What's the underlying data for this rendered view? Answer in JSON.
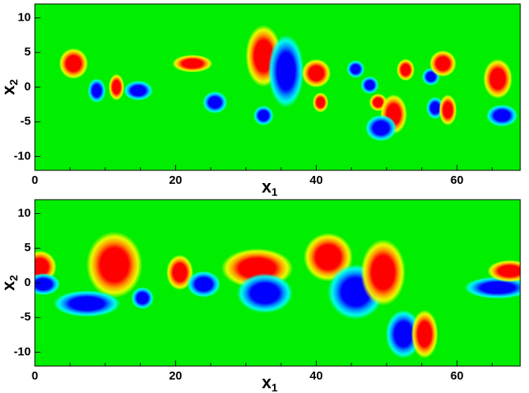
{
  "chart_data": [
    {
      "type": "contour",
      "background": "#00ee00",
      "positive_color": "#ff0000",
      "negative_color": "#0000ff",
      "xlabel": "x",
      "xlabel_sub": "1",
      "ylabel": "x",
      "ylabel_sub": "2",
      "xlim": [
        0,
        69
      ],
      "ylim": [
        -12,
        12
      ],
      "xticks": [
        0,
        20,
        40,
        60
      ],
      "yticks": [
        -10,
        -5,
        0,
        5,
        10
      ],
      "xminorticks": [
        5,
        10,
        15,
        25,
        30,
        35,
        45,
        50,
        55,
        65
      ],
      "vortices": [
        {
          "x": 5.5,
          "y": 3.4,
          "rx": 1.3,
          "ry": 1.4,
          "sign": 1
        },
        {
          "x": 8.8,
          "y": -0.5,
          "rx": 0.8,
          "ry": 1.1,
          "sign": -1
        },
        {
          "x": 11.6,
          "y": 0,
          "rx": 0.7,
          "ry": 1.2,
          "sign": 1
        },
        {
          "x": 14.7,
          "y": -0.5,
          "rx": 1.3,
          "ry": 0.9,
          "sign": -1
        },
        {
          "x": 22.4,
          "y": 3.4,
          "rx": 1.8,
          "ry": 0.8,
          "sign": 1
        },
        {
          "x": 25.6,
          "y": -2.2,
          "rx": 1.1,
          "ry": 1.0,
          "sign": -1
        },
        {
          "x": 32.5,
          "y": 4.5,
          "rx": 1.6,
          "ry": 2.8,
          "sign": 1
        },
        {
          "x": 35.7,
          "y": 2.3,
          "rx": 1.6,
          "ry": 3.3,
          "sign": -1
        },
        {
          "x": 32.5,
          "y": -4.1,
          "rx": 0.9,
          "ry": 0.9,
          "sign": -1
        },
        {
          "x": 40,
          "y": 2,
          "rx": 1.3,
          "ry": 1.3,
          "sign": 1
        },
        {
          "x": 40.6,
          "y": -2.2,
          "rx": 0.7,
          "ry": 0.9,
          "sign": 1
        },
        {
          "x": 45.6,
          "y": 2.6,
          "rx": 0.8,
          "ry": 0.8,
          "sign": -1
        },
        {
          "x": 47.6,
          "y": 0.3,
          "rx": 0.8,
          "ry": 0.8,
          "sign": -1
        },
        {
          "x": 48.8,
          "y": -2.2,
          "rx": 0.8,
          "ry": 0.8,
          "sign": 1
        },
        {
          "x": 51,
          "y": -3.9,
          "rx": 1.2,
          "ry": 1.8,
          "sign": 1
        },
        {
          "x": 49.2,
          "y": -5.9,
          "rx": 1.4,
          "ry": 1.2,
          "sign": -1
        },
        {
          "x": 52.7,
          "y": 2.5,
          "rx": 0.8,
          "ry": 1.0,
          "sign": 1
        },
        {
          "x": 56.3,
          "y": 1.5,
          "rx": 0.8,
          "ry": 0.8,
          "sign": -1
        },
        {
          "x": 58,
          "y": 3.4,
          "rx": 1.2,
          "ry": 1.2,
          "sign": 1
        },
        {
          "x": 56.9,
          "y": -3,
          "rx": 0.8,
          "ry": 1.0,
          "sign": -1
        },
        {
          "x": 58.7,
          "y": -3.3,
          "rx": 0.8,
          "ry": 1.4,
          "sign": 1
        },
        {
          "x": 65.8,
          "y": 1.2,
          "rx": 1.3,
          "ry": 1.8,
          "sign": 1
        },
        {
          "x": 66.4,
          "y": -4.1,
          "rx": 1.4,
          "ry": 1.0,
          "sign": -1
        }
      ]
    },
    {
      "type": "contour",
      "background": "#00ee00",
      "positive_color": "#ff0000",
      "negative_color": "#0000ff",
      "xlabel": "x",
      "xlabel_sub": "1",
      "ylabel": "x",
      "ylabel_sub": "2",
      "xlim": [
        0,
        69
      ],
      "ylim": [
        -12,
        12
      ],
      "xticks": [
        0,
        20,
        40,
        60
      ],
      "yticks": [
        -10,
        -5,
        0,
        5,
        10
      ],
      "xminorticks": [
        5,
        10,
        15,
        25,
        30,
        35,
        45,
        50,
        55,
        65
      ],
      "vortices": [
        {
          "x": 0.7,
          "y": 2.3,
          "rx": 1.5,
          "ry": 1.5,
          "sign": 1
        },
        {
          "x": 1.2,
          "y": -0.2,
          "rx": 1.5,
          "ry": 1.0,
          "sign": -1
        },
        {
          "x": 11.3,
          "y": 2.6,
          "rx": 2.5,
          "ry": 3,
          "sign": 1
        },
        {
          "x": 7.4,
          "y": -3,
          "rx": 3,
          "ry": 1.2,
          "sign": -1
        },
        {
          "x": 15.3,
          "y": -2.2,
          "rx": 1.0,
          "ry": 1.0,
          "sign": -1
        },
        {
          "x": 20.6,
          "y": 1.5,
          "rx": 1.2,
          "ry": 1.6,
          "sign": 1
        },
        {
          "x": 24,
          "y": -0.2,
          "rx": 1.5,
          "ry": 1.2,
          "sign": -1
        },
        {
          "x": 31.6,
          "y": 2.1,
          "rx": 3.2,
          "ry": 1.8,
          "sign": 1
        },
        {
          "x": 32.7,
          "y": -1.5,
          "rx": 2.5,
          "ry": 1.8,
          "sign": -1
        },
        {
          "x": 41.7,
          "y": 3.7,
          "rx": 2.2,
          "ry": 2.2,
          "sign": 1
        },
        {
          "x": 45.6,
          "y": -1.3,
          "rx": 2.5,
          "ry": 2.5,
          "sign": -1
        },
        {
          "x": 49.5,
          "y": 1.5,
          "rx": 2.0,
          "ry": 3,
          "sign": 1
        },
        {
          "x": 52.4,
          "y": -7.4,
          "rx": 1.6,
          "ry": 2.2,
          "sign": -1
        },
        {
          "x": 55.4,
          "y": -7.4,
          "rx": 1.2,
          "ry": 2.2,
          "sign": 1
        },
        {
          "x": 65.8,
          "y": -0.7,
          "rx": 3,
          "ry": 1,
          "sign": -1
        },
        {
          "x": 67.5,
          "y": 1.7,
          "rx": 2,
          "ry": 1,
          "sign": 1
        }
      ]
    }
  ]
}
